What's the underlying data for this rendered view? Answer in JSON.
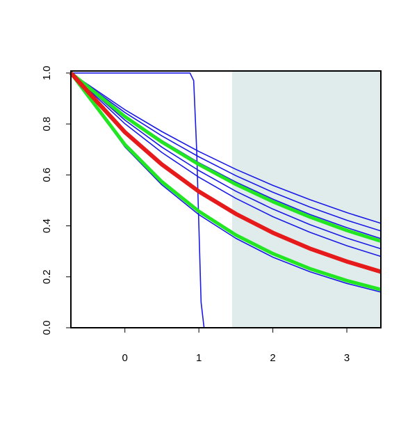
{
  "chart_data": {
    "type": "line",
    "x": [
      -0.73,
      0,
      0.5,
      1,
      1.5,
      2,
      2.5,
      3,
      3.46
    ],
    "xlim": [
      -0.73,
      3.46
    ],
    "ylim": [
      0,
      1.008
    ],
    "xticks": [
      0,
      1,
      2,
      3
    ],
    "yticks": [
      {
        "value": 0,
        "label": "0.0"
      },
      {
        "value": 0.2,
        "label": "0.2"
      },
      {
        "value": 0.4,
        "label": "0.4"
      },
      {
        "value": 0.6,
        "label": "0.6"
      },
      {
        "value": 0.8,
        "label": "0.8"
      },
      {
        "value": 1,
        "label": "1.0"
      }
    ],
    "shaded_region": {
      "xlim": [
        1.45,
        3.46
      ],
      "color": "#dfeceb"
    },
    "series": [
      {
        "color": "#1a1ae6",
        "width": 1.6,
        "values": [
          1,
          0.856,
          0.77,
          0.692,
          0.622,
          0.559,
          0.503,
          0.452,
          0.41
        ]
      },
      {
        "color": "#1a1ae6",
        "width": 1.6,
        "values": [
          1,
          0.845,
          0.753,
          0.671,
          0.597,
          0.532,
          0.474,
          0.422,
          0.38
        ]
      },
      {
        "color": "#1a1ae6",
        "width": 1.6,
        "values": [
          1,
          0.833,
          0.735,
          0.648,
          0.572,
          0.505,
          0.445,
          0.393,
          0.35
        ]
      },
      {
        "color": "#1a1ae6",
        "width": 1.6,
        "values": [
          1,
          0.815,
          0.709,
          0.617,
          0.536,
          0.466,
          0.405,
          0.352,
          0.31
        ]
      },
      {
        "color": "#1a1ae6",
        "width": 1.6,
        "values": [
          1,
          0.801,
          0.688,
          0.591,
          0.508,
          0.436,
          0.375,
          0.322,
          0.28
        ]
      },
      {
        "color": "#1a1ae6",
        "width": 1.6,
        "values": [
          1,
          0.71,
          0.561,
          0.444,
          0.351,
          0.277,
          0.22,
          0.174,
          0.14
        ]
      },
      {
        "color": "#1a1ae6",
        "width": 1.6,
        "x": [
          -0.73,
          0.88,
          0.93,
          0.97,
          1.0,
          1.03,
          1.07,
          3.46
        ],
        "values": [
          1,
          1,
          0.97,
          0.7,
          0.4,
          0.1,
          0,
          0
        ]
      },
      {
        "color": "#22e622",
        "width": 5,
        "values": [
          1,
          0.829,
          0.729,
          0.641,
          0.563,
          0.495,
          0.435,
          0.382,
          0.34
        ]
      },
      {
        "color": "#22e622",
        "width": 5,
        "values": [
          1,
          0.719,
          0.573,
          0.457,
          0.364,
          0.291,
          0.232,
          0.185,
          0.15
        ]
      },
      {
        "color": "#e61a1a",
        "width": 6,
        "values": [
          1,
          0.768,
          0.641,
          0.535,
          0.447,
          0.373,
          0.311,
          0.26,
          0.22
        ]
      }
    ]
  }
}
